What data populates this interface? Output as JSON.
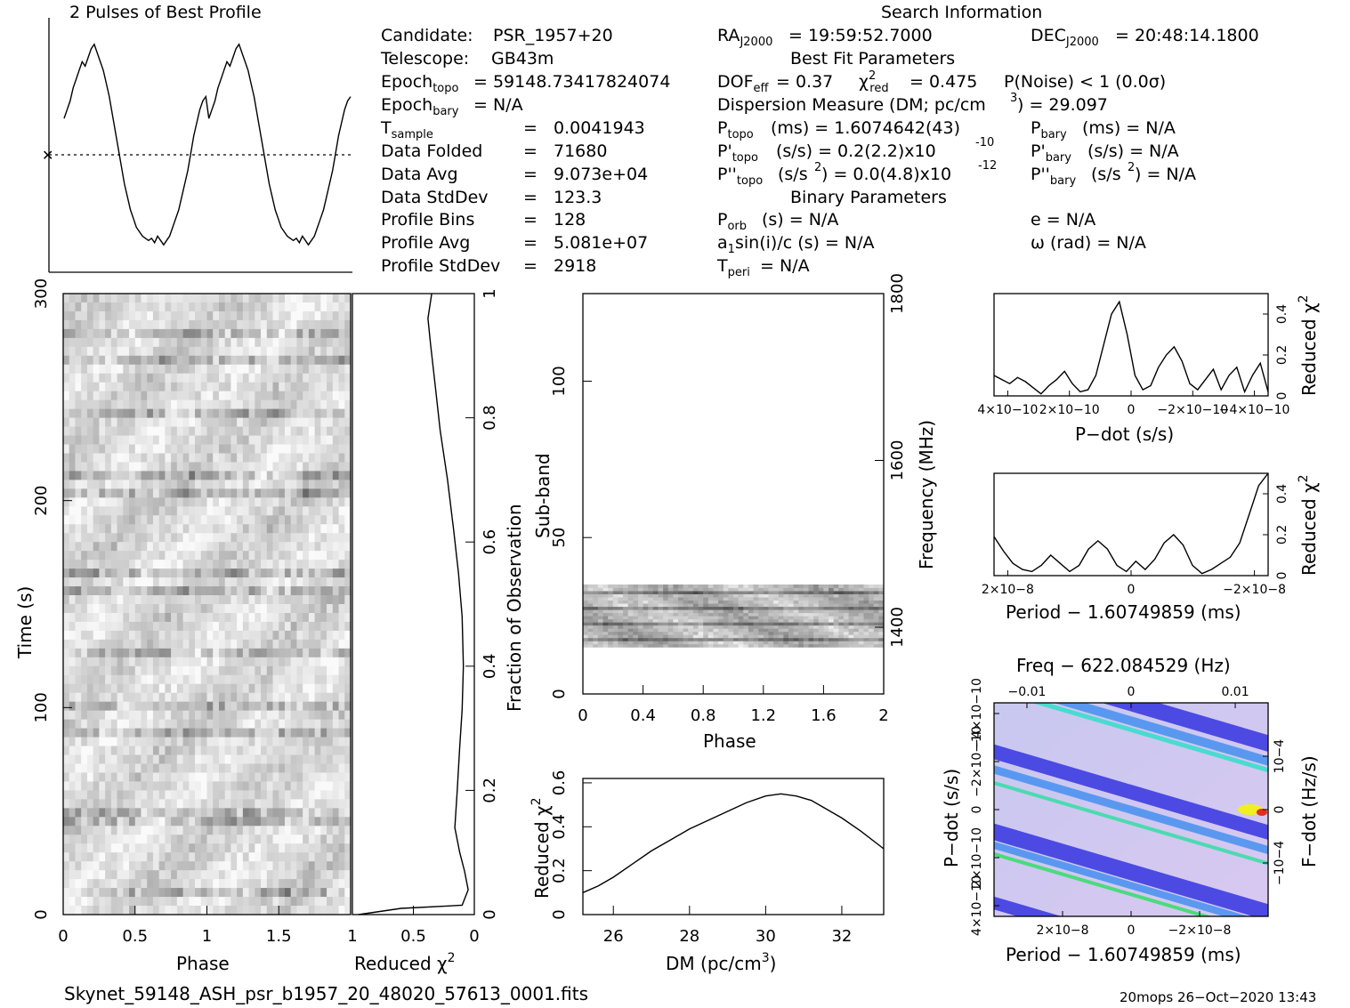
{
  "profile_title": "2 Pulses of Best Profile",
  "search_title": "Search Information",
  "info": {
    "candidate_label": "Candidate:",
    "candidate": "PSR_1957+20",
    "telescope_label": "Telescope:",
    "telescope": "GB43m",
    "epoch_topo": "= 59148.73417824074",
    "epoch_bary": "= N/A",
    "tsample": "0.0041943",
    "data_folded": "71680",
    "data_avg": "9.073e+04",
    "data_stddev": "123.3",
    "profile_bins": "128",
    "profile_avg": "5.081e+07",
    "profile_stddev": "2918",
    "ra": "= 19:59:52.7000",
    "dec": "= 20:48:14.1800",
    "best_fit_title": "Best Fit Parameters",
    "dof_eff": "= 0.37",
    "chi2_red": "= 0.475",
    "p_noise": "P(Noise) < 1   (0.0σ)",
    "dm": "Dispersion Measure (DM; pc/cm",
    "dm_val": ") = 29.097",
    "p_topo": "(ms) =  1.6074642(43)",
    "p_bary": "(ms) = N/A",
    "pd_topo": "(s/s) =  0.2(2.2)x10",
    "pd_topo_exp": "-10",
    "pd_bary": "(s/s) = N/A",
    "pdd_topo": "(s/s",
    "pdd_topo_val": ") = 0.0(4.8)x10",
    "pdd_topo_exp": "-12",
    "pdd_bary": "(s/s",
    "pdd_bary_val": ") = N/A",
    "binary_title": "Binary Parameters",
    "p_orb": "(s) = N/A",
    "a1sini": "sin(i)/c (s) = N/A",
    "t_peri": "= N/A",
    "e": "e = N/A",
    "omega": "ω (rad) = N/A"
  },
  "labels": {
    "time_axis": "Time (s)",
    "phase": "Phase",
    "reduced_chi2": "Reduced χ",
    "fraction_obs": "Fraction of Observation",
    "subband": "Sub-band",
    "frequency": "Frequency (MHz)",
    "dm_axis": "DM (pc/cm",
    "pdot_axis": "P−dot (s/s)",
    "period_axis": "Period − 1.60749859 (ms)",
    "freq_axis": "Freq − 622.084529 (Hz)",
    "fdot_axis": "F−dot (Hz/s)",
    "footer_file": "Skynet_59148_ASH_psr_b1957_20_48020_57613_0001.fits",
    "footer_right": "20mops 26−Oct−2020 13:43"
  },
  "chart_data": [
    {
      "type": "line",
      "title": "2 Pulses of Best Profile",
      "x_range": [
        0,
        2
      ],
      "y": [
        0.62,
        0.66,
        0.7,
        0.76,
        0.8,
        0.84,
        0.88,
        0.86,
        0.9,
        0.94,
        0.96,
        0.92,
        0.88,
        0.84,
        0.78,
        0.72,
        0.64,
        0.56,
        0.48,
        0.4,
        0.32,
        0.26,
        0.2,
        0.16,
        0.12,
        0.1,
        0.08,
        0.07,
        0.06,
        0.07,
        0.05,
        0.08,
        0.06,
        0.04,
        0.06,
        0.08,
        0.12,
        0.16,
        0.2,
        0.26,
        0.32,
        0.38,
        0.46,
        0.54,
        0.6,
        0.66,
        0.7,
        0.72,
        0.62,
        0.66,
        0.7,
        0.76,
        0.8,
        0.84,
        0.88,
        0.86,
        0.9,
        0.94,
        0.96,
        0.92,
        0.88,
        0.84,
        0.78,
        0.72,
        0.64,
        0.56,
        0.48,
        0.4,
        0.32,
        0.26,
        0.2,
        0.16,
        0.12,
        0.1,
        0.08,
        0.07,
        0.06,
        0.07,
        0.05,
        0.08,
        0.06,
        0.04,
        0.06,
        0.08,
        0.12,
        0.16,
        0.2,
        0.26,
        0.32,
        0.38,
        0.46,
        0.54,
        0.6,
        0.66,
        0.7,
        0.72
      ]
    },
    {
      "type": "heatmap",
      "name": "time-phase",
      "xlabel": "Phase",
      "ylabel": "Time (s)",
      "x_ticks": [
        "0",
        "0.5",
        "1",
        "1.5"
      ],
      "y_ticks": [
        "0",
        "100",
        "200",
        "300"
      ],
      "x_range": [
        0,
        2
      ],
      "y_range": [
        0,
        300
      ]
    },
    {
      "type": "line",
      "name": "reduced-chi2-vs-fraction",
      "xlabel": "Reduced χ2",
      "ylabel": "Fraction of Observation",
      "x_ticks": [
        "1",
        "0.5",
        "0"
      ],
      "y_ticks": [
        "0",
        "0.2",
        "0.4",
        "0.6",
        "0.8",
        "1"
      ],
      "x_range": [
        1,
        0
      ],
      "y_range": [
        0,
        1
      ],
      "points": [
        [
          0.95,
          0.0
        ],
        [
          0.6,
          0.01
        ],
        [
          0.1,
          0.015
        ],
        [
          0.05,
          0.04
        ],
        [
          0.08,
          0.07
        ],
        [
          0.12,
          0.1
        ],
        [
          0.16,
          0.14
        ],
        [
          0.14,
          0.2
        ],
        [
          0.12,
          0.27
        ],
        [
          0.1,
          0.33
        ],
        [
          0.09,
          0.4
        ],
        [
          0.1,
          0.48
        ],
        [
          0.13,
          0.55
        ],
        [
          0.17,
          0.62
        ],
        [
          0.22,
          0.7
        ],
        [
          0.28,
          0.78
        ],
        [
          0.32,
          0.85
        ],
        [
          0.36,
          0.92
        ],
        [
          0.38,
          0.96
        ],
        [
          0.35,
          1.0
        ]
      ]
    },
    {
      "type": "heatmap",
      "name": "subband-phase",
      "xlabel": "Phase",
      "ylabel": "Sub-band",
      "y2label": "Frequency (MHz)",
      "x_ticks": [
        "0",
        "0.4",
        "0.8",
        "1.2",
        "1.6",
        "2"
      ],
      "y_ticks": [
        "0",
        "50",
        "100"
      ],
      "y2_ticks": [
        "1400",
        "1600",
        "1800"
      ],
      "x_range": [
        0,
        2
      ],
      "y_range": [
        0,
        128
      ],
      "band_range": [
        15,
        35
      ]
    },
    {
      "type": "line",
      "name": "dm-curve",
      "xlabel": "DM (pc/cm3)",
      "ylabel": "Reduced χ2",
      "x_ticks": [
        "26",
        "28",
        "30",
        "32"
      ],
      "y_ticks": [
        "0",
        "0.2",
        "0.4",
        "0.6"
      ],
      "x_range": [
        25.2,
        33.1
      ],
      "y_range": [
        0,
        0.62
      ],
      "x": [
        25.2,
        25.6,
        26,
        26.5,
        27,
        27.5,
        28,
        28.5,
        29,
        29.5,
        30,
        30.4,
        30.8,
        31.2,
        31.6,
        32,
        32.5,
        33.1
      ],
      "y": [
        0.1,
        0.13,
        0.17,
        0.23,
        0.29,
        0.34,
        0.39,
        0.43,
        0.47,
        0.51,
        0.54,
        0.55,
        0.54,
        0.52,
        0.48,
        0.44,
        0.38,
        0.3
      ]
    },
    {
      "type": "line",
      "name": "pdot-curve",
      "xlabel": "P−dot (s/s)",
      "ylabel": "Reduced χ2",
      "x_ticks": [
        "4×10−10",
        "2×10−10",
        "0",
        "−2×10−10",
        "−4×10−10"
      ],
      "y_ticks": [
        "0",
        "0.2",
        "0.4"
      ],
      "y": [
        0.1,
        0.08,
        0.06,
        0.09,
        0.07,
        0.04,
        0.01,
        0.05,
        0.08,
        0.12,
        0.06,
        0.02,
        0.03,
        0.1,
        0.25,
        0.4,
        0.46,
        0.3,
        0.1,
        0.03,
        0.05,
        0.14,
        0.2,
        0.24,
        0.17,
        0.06,
        0.03,
        0.08,
        0.13,
        0.03,
        0.1,
        0.14,
        0.02,
        0.1,
        0.16,
        0.02
      ]
    },
    {
      "type": "line",
      "name": "period-curve",
      "xlabel": "Period − 1.60749859 (ms)",
      "ylabel": "Reduced χ2",
      "x_ticks": [
        "2×10−8",
        "0",
        "−2×10−8"
      ],
      "y_ticks": [
        "0",
        "0.2",
        "0.4"
      ],
      "y": [
        0.19,
        0.12,
        0.06,
        0.03,
        0.02,
        0.05,
        0.1,
        0.06,
        0.02,
        0.05,
        0.13,
        0.17,
        0.13,
        0.05,
        0.02,
        0.07,
        0.03,
        0.08,
        0.16,
        0.2,
        0.15,
        0.05,
        0.01,
        0.03,
        0.06,
        0.09,
        0.16,
        0.3,
        0.44,
        0.5
      ]
    },
    {
      "type": "heatmap",
      "name": "period-pdot",
      "xlabel": "Period − 1.60749859 (ms)",
      "ylabel": "P−dot (s/s)",
      "x2label": "Freq − 622.084529 (Hz)",
      "y2label": "F−dot (Hz/s)",
      "x_ticks": [
        "2×10−8",
        "0",
        "−2×10−8"
      ],
      "y_ticks": [
        "4×10−10",
        "2×10−10",
        "0",
        "−2×10−10",
        "−4×10−10"
      ],
      "x2_ticks": [
        "−0.01",
        "0",
        "0.01"
      ],
      "y2_ticks": [
        "10−4",
        "0",
        "−10−4"
      ]
    }
  ]
}
